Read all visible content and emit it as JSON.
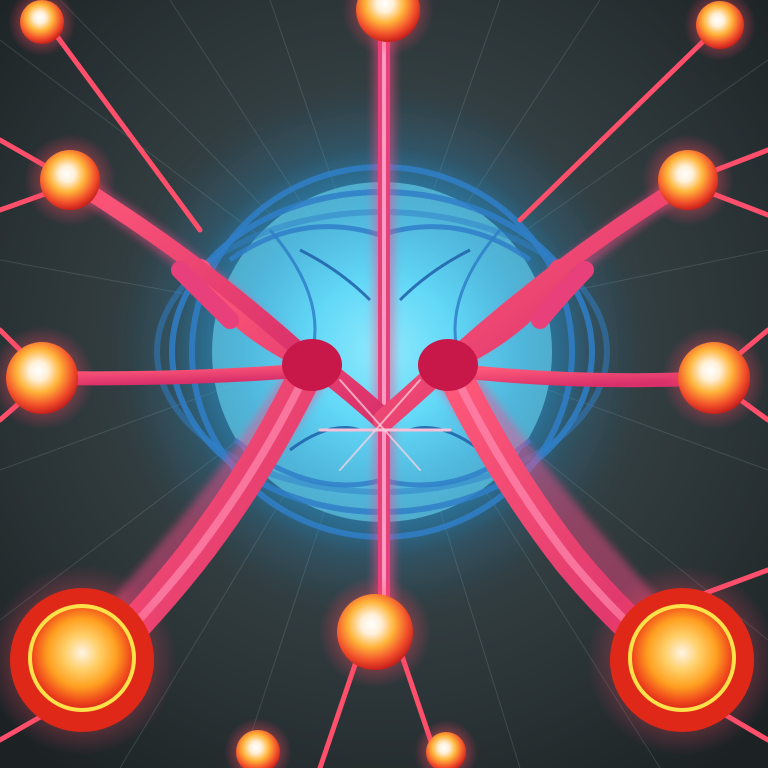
{
  "image": {
    "subject": "neuron-network",
    "colors": {
      "background_center": "#3d4a4e",
      "background_edge": "#1e2426",
      "glow_inner": "#7fe8ff",
      "glow_outer": "#1f8fd0",
      "vessel_blue": "#2a6fb8",
      "axon": "#e0407a",
      "axon_highlight": "#ff8ab8",
      "cell_core": "#fff3e8",
      "cell_mid": "#ffb02e",
      "cell_edge": "#e02818"
    }
  }
}
